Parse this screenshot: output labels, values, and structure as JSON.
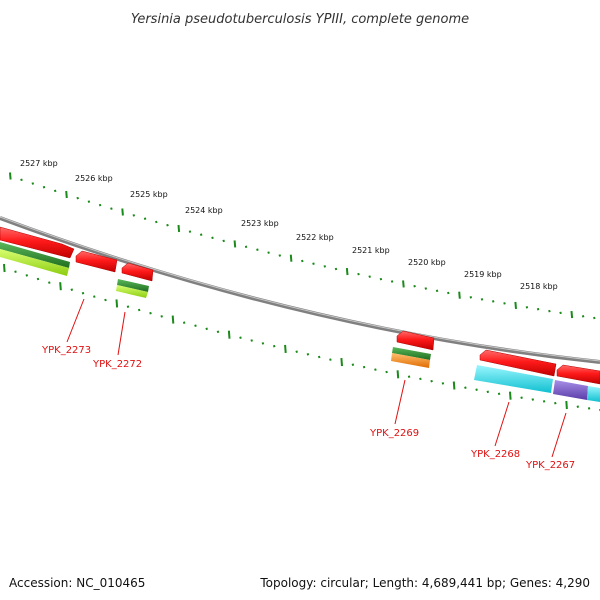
{
  "title": "Yersinia pseudotuberculosis YPIII, complete genome",
  "kbp_labels": [
    "2527 kbp",
    "2526 kbp",
    "2525 kbp",
    "2524 kbp",
    "2523 kbp",
    "2522 kbp",
    "2521 kbp",
    "2520 kbp",
    "2519 kbp",
    "2518 kbp"
  ],
  "genes": [
    {
      "id": "g2273",
      "label": "YPK_2273"
    },
    {
      "id": "g2272",
      "label": "YPK_2272"
    },
    {
      "id": "g2269",
      "label": "YPK_2269"
    },
    {
      "id": "g2268",
      "label": "YPK_2268"
    },
    {
      "id": "g2267",
      "label": "YPK_2267"
    }
  ],
  "footer": {
    "accession": "Accession: NC_010465",
    "summary": "Topology: circular; Length: 4,689,441 bp; Genes: 4,290"
  },
  "colors": {
    "backbone": "#808080",
    "tick": "#1a8a1a",
    "cds_red": "#ff1a1a",
    "green_dark": "#2a8a2a",
    "green_light": "#a8e030",
    "orange": "#ff8c1a",
    "cyan": "#1ad8e8",
    "purple": "#7b5cc8",
    "label_red": "#e01010"
  }
}
